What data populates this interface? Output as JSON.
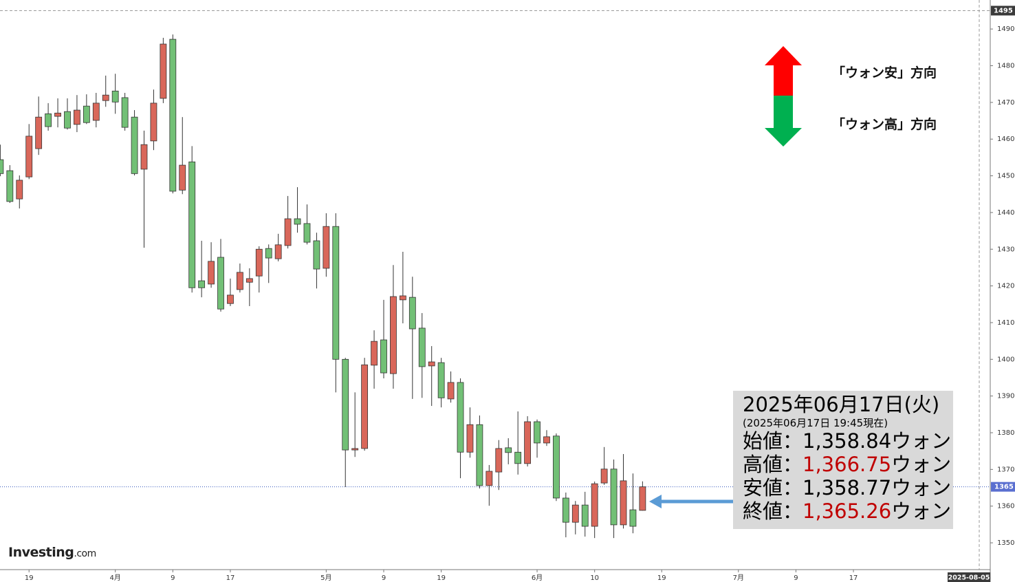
{
  "chart_data": {
    "type": "candlestick",
    "categories": [
      null,
      null,
      null,
      "19",
      null,
      null,
      null,
      null,
      null,
      null,
      null,
      null,
      "4月",
      null,
      null,
      null,
      null,
      null,
      "9",
      null,
      null,
      null,
      null,
      null,
      "17",
      null,
      null,
      null,
      null,
      null,
      null,
      null,
      null,
      null,
      "5月",
      null,
      null,
      null,
      null,
      null,
      "9",
      null,
      null,
      null,
      null,
      null,
      "19",
      null,
      null,
      null,
      null,
      null,
      null,
      null,
      null,
      null,
      "6月",
      null,
      null,
      null,
      null,
      null,
      "10",
      null,
      null,
      null,
      null,
      null,
      null,
      "19",
      null,
      null,
      null,
      null,
      null,
      null,
      null,
      "7月",
      null,
      null,
      null,
      null,
      null,
      "9",
      null,
      null,
      null,
      null,
      null,
      "17"
    ],
    "open": [
      1454.4,
      1451.4,
      1443.7,
      1449.7,
      1457.4,
      1466.9,
      1466.2,
      1467.5,
      1464.0,
      1469.0,
      1465.1,
      1470.5,
      1473.1,
      1471.3,
      1466.0,
      1451.8,
      1459.5,
      1471.1,
      1487.2,
      1446.1,
      1453.8,
      1421.4,
      1420.5,
      1427.8,
      1415.2,
      1419.0,
      1421.0,
      1422.7,
      1430.2,
      1427.4,
      1431.0,
      1438.3,
      1437.0,
      1432.3,
      1424.8,
      1436.2,
      1400.0,
      1375.3,
      1375.7,
      1398.4,
      1405.3,
      1396.1,
      1416.2,
      1416.9,
      1408.5,
      1398.2,
      1399.1,
      1389.2,
      1393.7,
      1374.7,
      1382.2,
      1365.6,
      1369.3,
      1375.9,
      1374.7,
      1371.6,
      1383.0,
      1377.2,
      1379.1,
      1362.2,
      1355.6,
      1360.3,
      1354.5,
      1366.3,
      1370.1,
      1354.9,
      1359.0,
      1358.84,
      null,
      null,
      null,
      null,
      null,
      null,
      null,
      null,
      null,
      null,
      null,
      null,
      null,
      null,
      null,
      null,
      null,
      null,
      null,
      null,
      null,
      null
    ],
    "high": [
      1458.5,
      1452.9,
      1450.1,
      1464.1,
      1471.6,
      1469.8,
      1471.1,
      1471.1,
      1472.0,
      1472.2,
      1472.6,
      1477.3,
      1477.8,
      1472.6,
      1467.9,
      1462.3,
      1473.5,
      1487.6,
      1488.5,
      1466.0,
      1458.1,
      1432.3,
      1431.9,
      1432.8,
      1422.0,
      1426.1,
      1424.8,
      1430.8,
      1431.3,
      1434.2,
      1444.5,
      1446.9,
      1442.2,
      1434.5,
      1439.8,
      1439.8,
      1400.4,
      1391.0,
      1400.4,
      1407.9,
      1416.2,
      1425.7,
      1429.3,
      1422.5,
      1412.6,
      1403.6,
      1400.4,
      1396.7,
      1394.8,
      1386.9,
      1384.7,
      1371.2,
      1378.0,
      1378.5,
      1385.8,
      1384.5,
      1383.6,
      1380.7,
      1379.8,
      1363.7,
      1361.4,
      1363.9,
      1366.7,
      1376.1,
      1372.7,
      1374.2,
      1368.9,
      1366.75,
      null,
      null,
      null,
      null,
      null,
      null,
      null,
      null,
      null,
      null,
      null,
      null,
      null,
      null,
      null,
      null,
      null,
      null,
      null,
      null,
      null,
      null
    ],
    "low": [
      1449.9,
      1442.6,
      1441.1,
      1449.1,
      1455.7,
      1462.3,
      1463.2,
      1462.6,
      1461.9,
      1464.1,
      1463.2,
      1468.8,
      1466.9,
      1462.3,
      1450.1,
      1430.4,
      1457.0,
      1469.8,
      1445.2,
      1445.0,
      1418.2,
      1416.9,
      1419.5,
      1413.0,
      1414.5,
      1418.2,
      1414.5,
      1418.2,
      1420.8,
      1426.7,
      1430.2,
      1434.5,
      1431.3,
      1419.3,
      1422.5,
      1391.0,
      1365.2,
      1373.4,
      1375.1,
      1392.0,
      1394.8,
      1392.0,
      1409.8,
      1389.2,
      1389.5,
      1387.3,
      1386.9,
      1388.2,
      1367.6,
      1373.2,
      1364.8,
      1360.1,
      1364.4,
      1371.4,
      1368.6,
      1370.8,
      1373.2,
      1376.4,
      1361.4,
      1351.5,
      1352.3,
      1351.7,
      1351.3,
      1365.8,
      1351.3,
      1353.9,
      1352.6,
      1358.77,
      null,
      null,
      null,
      null,
      null,
      null,
      null,
      null,
      null,
      null,
      null,
      null,
      null,
      null,
      null,
      null,
      null,
      null,
      null,
      null,
      null,
      null
    ],
    "close": [
      1450.6,
      1443.0,
      1448.8,
      1460.8,
      1466.0,
      1463.4,
      1467.1,
      1463.0,
      1467.9,
      1464.5,
      1469.8,
      1472.0,
      1470.1,
      1463.2,
      1450.6,
      1458.5,
      1469.8,
      1485.9,
      1445.8,
      1452.9,
      1419.5,
      1419.5,
      1426.7,
      1413.7,
      1417.5,
      1423.7,
      1422.0,
      1430.0,
      1427.6,
      1431.2,
      1438.3,
      1436.8,
      1431.9,
      1424.6,
      1436.2,
      1400.0,
      1375.3,
      1375.7,
      1398.5,
      1404.9,
      1396.3,
      1417.1,
      1417.3,
      1408.3,
      1398.0,
      1399.3,
      1389.5,
      1393.7,
      1374.7,
      1382.2,
      1365.6,
      1369.5,
      1375.7,
      1374.6,
      1371.6,
      1383.0,
      1377.2,
      1378.9,
      1362.2,
      1355.6,
      1360.3,
      1354.5,
      1366.1,
      1370.1,
      1354.9,
      1366.9,
      1354.5,
      1365.26,
      null,
      null,
      null,
      null,
      null,
      null,
      null,
      null,
      null,
      null,
      null,
      null,
      null,
      null,
      null,
      null,
      null,
      null,
      null,
      null,
      null,
      null
    ],
    "up_color": "#d9675a",
    "down_color": "#72c076",
    "ylim": [
      1342.7,
      1497.9
    ],
    "yticks": [
      1350,
      1360,
      1370,
      1380,
      1390,
      1400,
      1410,
      1420,
      1430,
      1440,
      1450,
      1460,
      1470,
      1480,
      1490
    ],
    "top_line": 1495,
    "price_line": {
      "value": 1365.26,
      "label": "1365"
    },
    "x_end_label": "2025-08-05",
    "logo": "Investing",
    "logo_suffix": ".com",
    "annotations": {
      "up": "「ウォン安」方向",
      "down": "「ウォン高」方向"
    },
    "info_box": {
      "title": "2025年06月17日(火)",
      "subtitle": "(2025年06月17日 19:45現在)",
      "rows": [
        {
          "label": "始値：",
          "value": "1,358.84",
          "unit": "ウォン",
          "color": "#000000"
        },
        {
          "label": "高値：",
          "value": "1,366.75",
          "unit": "ウォン",
          "color": "#c00000"
        },
        {
          "label": "安値：",
          "value": "1,358.77",
          "unit": "ウォン",
          "color": "#000000"
        },
        {
          "label": "終値：",
          "value": "1,365.26",
          "unit": "ウォン",
          "color": "#c00000"
        }
      ]
    }
  }
}
